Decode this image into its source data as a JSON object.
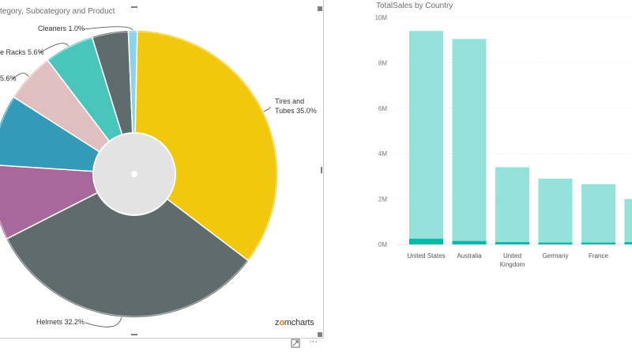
{
  "pie_visual": {
    "title": "tegory, Subcategory and Product",
    "brand": {
      "a": "z",
      "b": "mcharts"
    }
  },
  "bar_visual": {
    "title": "TotalSales by Country"
  },
  "footer": {
    "focus_icon": "focus-mode-icon",
    "more_icon": "more-options-icon",
    "more_glyph": "···"
  },
  "colors": {
    "tires": "#f2c80f",
    "helmets": "#5f6b6d",
    "purple": "#a66999",
    "blue": "#3599b8",
    "pink": "#dfbfbf",
    "teal": "#4ac5bb",
    "dark": "#5f6b6d",
    "cleaners": "#8ad4eb",
    "bar": "#94e2d9",
    "bar_dark": "#01b8aa",
    "center": "#e3e3e3"
  },
  "chart_data": [
    {
      "type": "pie",
      "labels": [
        "Tires and Tubes",
        "Helmets",
        "",
        "",
        "",
        "Bike Racks",
        "",
        "Cleaners"
      ],
      "values": [
        35.0,
        32.2,
        8.5,
        8.0,
        5.6,
        5.6,
        4.1,
        1.0
      ],
      "label_texts": [
        "Tires and Tubes 35.0%",
        "Helmets 32.2%",
        "",
        "",
        "5.6%",
        "e Racks 5.6%",
        "",
        "Cleaners 1.0%"
      ]
    },
    {
      "type": "bar",
      "title": "TotalSales by Country",
      "categories": [
        "United States",
        "Australia",
        "United Kingdom",
        "Germany",
        "France",
        ""
      ],
      "values": [
        9400000,
        9050000,
        3400000,
        2900000,
        2650000,
        2000000
      ],
      "dark_values": [
        250000,
        150000,
        100000,
        80000,
        80000,
        100000
      ],
      "y_ticks": [
        "0M",
        "2M",
        "4M",
        "6M",
        "8M",
        "10M"
      ],
      "ylim": [
        0,
        10000000
      ]
    }
  ]
}
